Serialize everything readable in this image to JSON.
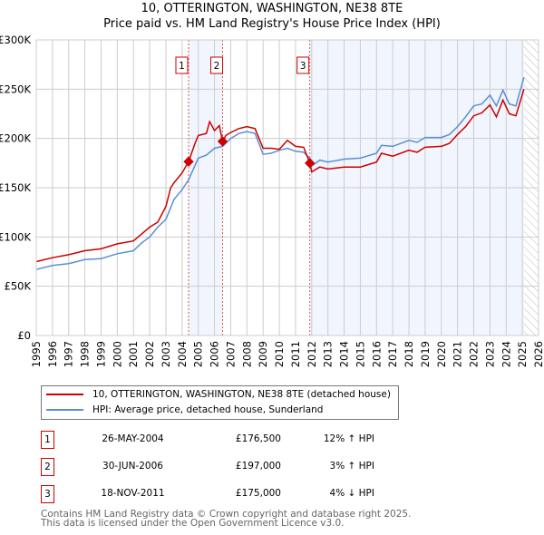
{
  "chart_data": {
    "type": "line",
    "title": "10, OTTERINGTON, WASHINGTON, NE38 8TE",
    "subtitle": "Price paid vs. HM Land Registry's House Price Index (HPI)",
    "xlim": [
      1995,
      2026
    ],
    "ylim": [
      0,
      300000
    ],
    "xticks": [
      "1995",
      "1996",
      "1997",
      "1998",
      "1999",
      "2000",
      "2001",
      "2002",
      "2003",
      "2004",
      "2005",
      "2006",
      "2007",
      "2008",
      "2009",
      "2010",
      "2011",
      "2012",
      "2013",
      "2014",
      "2015",
      "2016",
      "2017",
      "2018",
      "2019",
      "2020",
      "2021",
      "2022",
      "2023",
      "2024",
      "2025",
      "2026"
    ],
    "yticks": [
      {
        "v": 0,
        "label": "£0"
      },
      {
        "v": 50000,
        "label": "£50K"
      },
      {
        "v": 100000,
        "label": "£100K"
      },
      {
        "v": 150000,
        "label": "£150K"
      },
      {
        "v": 200000,
        "label": "£200K"
      },
      {
        "v": 250000,
        "label": "£250K"
      },
      {
        "v": 300000,
        "label": "£300K"
      }
    ],
    "grid": true,
    "shaded_ranges": [
      [
        2004.4,
        2006.5
      ],
      [
        2011.88,
        2025.1
      ]
    ],
    "forecast_hatch_from": 2025.1,
    "series": [
      {
        "name": "10, OTTERINGTON, WASHINGTON, NE38 8TE (detached house)",
        "color": "#cc0000",
        "x": [
          1995,
          1996,
          1997,
          1998,
          1999,
          2000,
          2001,
          2002,
          2002.5,
          2003,
          2003.3,
          2003.5,
          2004,
          2004.4,
          2004.8,
          2005,
          2005.5,
          2005.7,
          2006,
          2006.3,
          2006.5,
          2006.7,
          2007,
          2007.5,
          2008,
          2008.5,
          2009,
          2009.5,
          2010,
          2010.5,
          2011,
          2011.5,
          2011.88,
          2012,
          2012.5,
          2013,
          2014,
          2015,
          2016,
          2016.3,
          2017,
          2018,
          2018.5,
          2019,
          2020,
          2020.5,
          2021,
          2021.5,
          2022,
          2022.5,
          2023,
          2023.4,
          2023.8,
          2024.2,
          2024.6,
          2025.1
        ],
        "y": [
          75000,
          79000,
          82000,
          86000,
          88000,
          93000,
          96000,
          110000,
          115000,
          131000,
          150000,
          155000,
          165000,
          176500,
          195000,
          203000,
          205000,
          217000,
          208000,
          213000,
          197000,
          203000,
          206000,
          210000,
          212000,
          210000,
          190000,
          190000,
          189000,
          198000,
          192000,
          191000,
          175000,
          166000,
          171000,
          169000,
          171000,
          171000,
          176000,
          185000,
          182000,
          188000,
          186000,
          191000,
          192000,
          195000,
          204000,
          212000,
          223000,
          226000,
          234000,
          222000,
          239000,
          225000,
          223000,
          250000
        ]
      },
      {
        "name": "HPI: Average price, detached house, Sunderland",
        "color": "#5b8fd4",
        "x": [
          1995,
          1996,
          1997,
          1998,
          1999,
          2000,
          2001,
          2001.5,
          2002,
          2002.5,
          2003,
          2003.5,
          2004,
          2004.4,
          2005,
          2005.5,
          2006,
          2006.5,
          2007,
          2007.5,
          2008,
          2008.5,
          2009,
          2009.5,
          2010,
          2010.5,
          2011,
          2011.5,
          2011.88,
          2012,
          2012.5,
          2013,
          2014,
          2015,
          2016,
          2016.3,
          2017,
          2018,
          2018.5,
          2019,
          2020,
          2020.5,
          2021,
          2021.5,
          2022,
          2022.5,
          2023,
          2023.4,
          2023.8,
          2024.2,
          2024.6,
          2025.1
        ],
        "y": [
          67000,
          71000,
          73000,
          77000,
          78000,
          83000,
          86000,
          94000,
          100000,
          110000,
          118000,
          138000,
          148000,
          158000,
          180000,
          183000,
          190000,
          192000,
          200000,
          205000,
          207000,
          205000,
          184000,
          185000,
          188000,
          190000,
          187000,
          186000,
          180000,
          172000,
          178000,
          176000,
          179000,
          180000,
          185000,
          193000,
          192000,
          198000,
          196000,
          201000,
          201000,
          204000,
          212000,
          222000,
          233000,
          235000,
          244000,
          233000,
          249000,
          235000,
          233000,
          262000
        ]
      }
    ],
    "sales": [
      {
        "n": "1",
        "date": "26-MAY-2004",
        "x": 2004.4,
        "price": "£176,500",
        "value": 176500,
        "hpi": "12% ↑ HPI"
      },
      {
        "n": "2",
        "date": "30-JUN-2006",
        "x": 2006.5,
        "price": "£197,000",
        "value": 197000,
        "hpi": "3% ↑ HPI"
      },
      {
        "n": "3",
        "date": "18-NOV-2011",
        "x": 2011.88,
        "price": "£175,000",
        "value": 175000,
        "hpi": "4% ↓ HPI"
      }
    ]
  },
  "footer": [
    "Contains HM Land Registry data © Crown copyright and database right 2025.",
    "This data is licensed under the Open Government Licence v3.0."
  ]
}
